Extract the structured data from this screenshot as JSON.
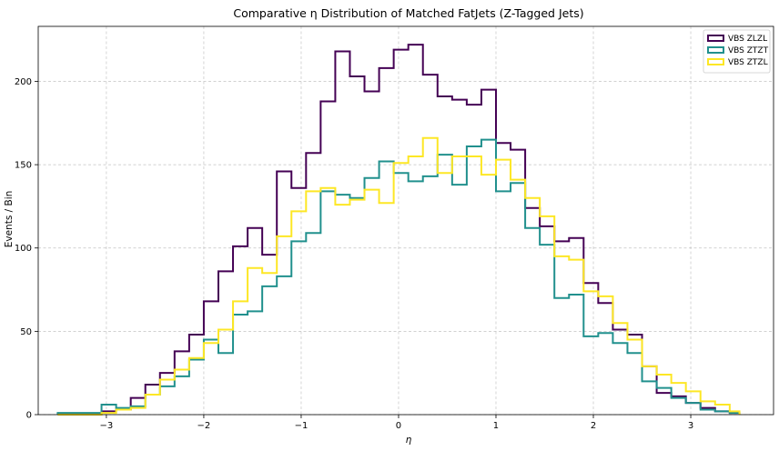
{
  "chart_data": {
    "type": "histogram-step",
    "title": "Comparative η Distribution of Matched FatJets (Z-Tagged Jets)",
    "xlabel": "η",
    "ylabel": "Events / Bin",
    "xlim": [
      -3.7,
      3.85
    ],
    "ylim": [
      0,
      233
    ],
    "xticks": [
      -3,
      -2,
      -1,
      0,
      1,
      2,
      3
    ],
    "xtick_labels": [
      "−3",
      "−2",
      "−1",
      "0",
      "1",
      "2",
      "3"
    ],
    "yticks": [
      0,
      50,
      100,
      150,
      200
    ],
    "ytick_labels": [
      "0",
      "50",
      "100",
      "150",
      "200"
    ],
    "grid": true,
    "legend_position": "top-right",
    "bin_edges": [
      -3.5,
      -3.35,
      -3.2,
      -3.05,
      -2.9,
      -2.75,
      -2.6,
      -2.45,
      -2.3,
      -2.15,
      -2.0,
      -1.85,
      -1.7,
      -1.55,
      -1.4,
      -1.25,
      -1.1,
      -0.95,
      -0.8,
      -0.65,
      -0.5,
      -0.35,
      -0.2,
      -0.05,
      0.1,
      0.25,
      0.4,
      0.55,
      0.7,
      0.85,
      1.0,
      1.15,
      1.3,
      1.45,
      1.6,
      1.75,
      1.9,
      2.05,
      2.2,
      2.35,
      2.5,
      2.65,
      2.8,
      2.95,
      3.1,
      3.25,
      3.4,
      3.5
    ],
    "series": [
      {
        "name": "VBS ZLZL",
        "color": "#440154",
        "values": [
          0,
          0,
          0,
          2,
          3,
          10,
          18,
          25,
          38,
          48,
          68,
          86,
          101,
          112,
          96,
          146,
          136,
          157,
          188,
          218,
          203,
          194,
          208,
          219,
          222,
          204,
          191,
          189,
          186,
          195,
          163,
          159,
          124,
          113,
          104,
          106,
          79,
          67,
          51,
          48,
          29,
          13,
          11,
          7,
          4,
          2,
          1
        ]
      },
      {
        "name": "VBS ZTZT",
        "color": "#21908d",
        "values": [
          1,
          1,
          1,
          6,
          4,
          5,
          12,
          17,
          23,
          33,
          45,
          37,
          60,
          62,
          77,
          83,
          104,
          109,
          134,
          132,
          130,
          142,
          152,
          145,
          140,
          143,
          156,
          138,
          161,
          165,
          134,
          139,
          112,
          102,
          70,
          72,
          47,
          49,
          43,
          37,
          20,
          16,
          10,
          7,
          3,
          2,
          1
        ]
      },
      {
        "name": "VBS ZTZL",
        "color": "#fde725",
        "values": [
          0,
          0,
          0,
          1,
          3,
          4,
          12,
          21,
          27,
          34,
          43,
          51,
          68,
          88,
          85,
          107,
          122,
          134,
          136,
          126,
          129,
          135,
          127,
          151,
          155,
          166,
          145,
          155,
          155,
          144,
          153,
          141,
          130,
          119,
          95,
          93,
          74,
          71,
          55,
          45,
          29,
          24,
          19,
          14,
          8,
          6,
          2
        ]
      }
    ]
  }
}
